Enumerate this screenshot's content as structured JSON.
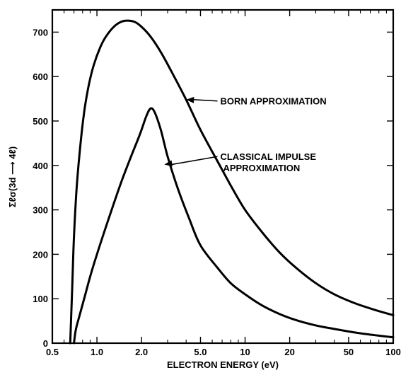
{
  "chart_data": {
    "type": "line",
    "title": "",
    "xlabel": "ELECTRON ENERGY (eV)",
    "ylabel": "Σℓσ(3d ⟶ 4ℓ)",
    "x_scale": "log",
    "xlim": [
      0.5,
      100
    ],
    "ylim": [
      0,
      750
    ],
    "x_ticks": [
      {
        "value": 0.5,
        "label": "0.5"
      },
      {
        "value": 1.0,
        "label": "1.0"
      },
      {
        "value": 2.0,
        "label": "2.0"
      },
      {
        "value": 5.0,
        "label": "5.0"
      },
      {
        "value": 10,
        "label": "10"
      },
      {
        "value": 20,
        "label": "20"
      },
      {
        "value": 50,
        "label": "50"
      },
      {
        "value": 100,
        "label": "100"
      }
    ],
    "y_ticks": [
      {
        "value": 0,
        "label": "0"
      },
      {
        "value": 100,
        "label": "100"
      },
      {
        "value": 200,
        "label": "200"
      },
      {
        "value": 300,
        "label": "300"
      },
      {
        "value": 400,
        "label": "400"
      },
      {
        "value": 500,
        "label": "500"
      },
      {
        "value": 600,
        "label": "600"
      },
      {
        "value": 700,
        "label": "700"
      }
    ],
    "grid": false,
    "legend": "none",
    "series": [
      {
        "name": "BORN APPROXIMATION",
        "color": "#000000",
        "points": [
          [
            0.66,
            0
          ],
          [
            0.68,
            120
          ],
          [
            0.7,
            240
          ],
          [
            0.73,
            350
          ],
          [
            0.77,
            440
          ],
          [
            0.82,
            520
          ],
          [
            0.88,
            580
          ],
          [
            0.95,
            625
          ],
          [
            1.05,
            665
          ],
          [
            1.15,
            690
          ],
          [
            1.3,
            712
          ],
          [
            1.45,
            723
          ],
          [
            1.6,
            726
          ],
          [
            1.8,
            723
          ],
          [
            2.0,
            712
          ],
          [
            2.3,
            690
          ],
          [
            2.7,
            655
          ],
          [
            3.2,
            610
          ],
          [
            4.0,
            548
          ],
          [
            5.0,
            480
          ],
          [
            6.5,
            410
          ],
          [
            8.0,
            355
          ],
          [
            10,
            300
          ],
          [
            13,
            250
          ],
          [
            17,
            205
          ],
          [
            22,
            170
          ],
          [
            30,
            135
          ],
          [
            40,
            110
          ],
          [
            55,
            90
          ],
          [
            75,
            75
          ],
          [
            100,
            63
          ]
        ]
      },
      {
        "name": "CLASSICAL IMPULSE APPROXIMATION",
        "color": "#000000",
        "points": [
          [
            0.7,
            0
          ],
          [
            0.72,
            30
          ],
          [
            0.76,
            60
          ],
          [
            0.82,
            100
          ],
          [
            0.9,
            150
          ],
          [
            1.0,
            200
          ],
          [
            1.2,
            280
          ],
          [
            1.45,
            360
          ],
          [
            1.7,
            420
          ],
          [
            1.95,
            470
          ],
          [
            2.15,
            510
          ],
          [
            2.3,
            528
          ],
          [
            2.45,
            520
          ],
          [
            2.7,
            480
          ],
          [
            3.0,
            420
          ],
          [
            3.5,
            350
          ],
          [
            4.2,
            280
          ],
          [
            5.0,
            220
          ],
          [
            6.5,
            170
          ],
          [
            8.0,
            135
          ],
          [
            10,
            110
          ],
          [
            13,
            85
          ],
          [
            17,
            66
          ],
          [
            22,
            52
          ],
          [
            30,
            40
          ],
          [
            40,
            32
          ],
          [
            55,
            24
          ],
          [
            75,
            18
          ],
          [
            100,
            13
          ]
        ]
      }
    ],
    "annotations": [
      {
        "lines": [
          "BORN APPROXIMATION"
        ],
        "text_x": 6.8,
        "text_y": 545,
        "arrow_to_x": 4.0,
        "arrow_to_y": 548
      },
      {
        "lines": [
          "CLASSICAL IMPULSE",
          "APPROXIMATION"
        ],
        "text_x": 6.8,
        "text_y": 420,
        "arrow_to_x": 2.85,
        "arrow_to_y": 402
      }
    ]
  }
}
